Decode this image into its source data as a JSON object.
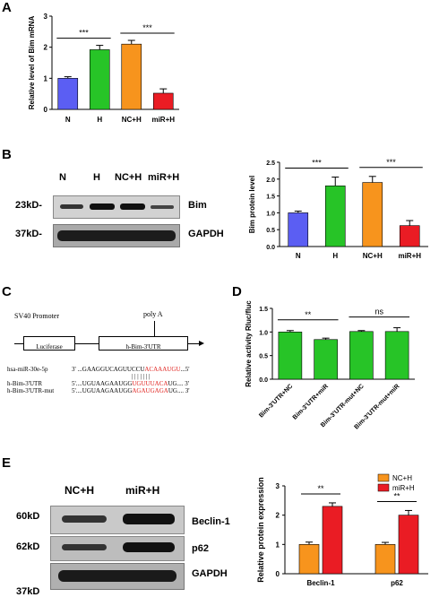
{
  "panels": {
    "A": "A",
    "B": "B",
    "C": "C",
    "D": "D",
    "E": "E"
  },
  "colors": {
    "blue": "#5b5ef3",
    "green": "#27c427",
    "orange": "#f7941d",
    "red": "#ea1c24"
  },
  "blotB": {
    "lanes": [
      "N",
      "H",
      "NC+H",
      "miR+H"
    ],
    "markers": [
      "23kD-",
      "37kD-"
    ],
    "proteins": [
      "Bim",
      "GAPDH"
    ]
  },
  "blotE": {
    "lanes": [
      "NC+H",
      "miR+H"
    ],
    "markers": [
      "60kD",
      "62kD",
      "37kD"
    ],
    "proteins": [
      "Beclin-1",
      "p62",
      "GAPDH"
    ]
  },
  "construct": {
    "promoter": "SV40 Promoter",
    "polyA": "poly A",
    "luc": "Luciferase",
    "utr": "h-Bim-3'UTR",
    "mirna_name": "hsa-miR-30e-5p",
    "mirna_prefix": "3' ...GAAGGUCAGUUCCU",
    "mirna_red": "ACAAAUGU",
    "mirna_suffix": "...5'",
    "pairing": "| | | | | | |",
    "wt_name": "h-Bim-3'UTR",
    "wt_prefix": "5'....UGUAAGAAUGG",
    "wt_red": "UGUUUACA",
    "wt_suffix": "UG.... 3'",
    "mut_name": "h-Bim-3'UTR-mut",
    "mut_prefix": "5'....UGUAAGAAUGG",
    "mut_red": "AGAUGAGA",
    "mut_suffix": "UG.... 3'"
  },
  "chart_data": [
    {
      "id": "A",
      "type": "bar",
      "categories": [
        "N",
        "H",
        "NC+H",
        "miR+H"
      ],
      "values": [
        1.0,
        1.92,
        2.1,
        0.52
      ],
      "errors": [
        0.05,
        0.14,
        0.12,
        0.14
      ],
      "ylabel": "Relative level of Bim mRNA",
      "ylim": [
        0,
        3
      ],
      "yticks": [
        "0",
        "1",
        "2",
        "3"
      ],
      "significance": [
        {
          "pair": [
            0,
            1
          ],
          "label": "***"
        },
        {
          "pair": [
            2,
            3
          ],
          "label": "***"
        }
      ]
    },
    {
      "id": "B",
      "type": "bar",
      "categories": [
        "N",
        "H",
        "NC+H",
        "miR+H"
      ],
      "values": [
        1.0,
        1.8,
        1.9,
        0.62
      ],
      "errors": [
        0.05,
        0.26,
        0.18,
        0.15
      ],
      "ylabel": "Bim protein level",
      "ylim": [
        0,
        2.5
      ],
      "yticks": [
        "0.0",
        "0.5",
        "1.0",
        "1.5",
        "2.0",
        "2.5"
      ],
      "significance": [
        {
          "pair": [
            0,
            1
          ],
          "label": "***"
        },
        {
          "pair": [
            2,
            3
          ],
          "label": "***"
        }
      ]
    },
    {
      "id": "D",
      "type": "bar",
      "categories": [
        "Bim-3'UTR+NC",
        "Bim-3'UTR+miR",
        "Bim-3'UTR-mut+NC",
        "Bim-3'UTR-mut+miR"
      ],
      "values": [
        1.0,
        0.84,
        1.01,
        1.01
      ],
      "errors": [
        0.03,
        0.03,
        0.02,
        0.08
      ],
      "ylabel": "Relative activity Rluc/fluc",
      "ylim": [
        0,
        1.5
      ],
      "yticks": [
        "0.0",
        "0.5",
        "1.0",
        "1.5"
      ],
      "significance": [
        {
          "pair": [
            0,
            1
          ],
          "label": "**"
        },
        {
          "pair": [
            2,
            3
          ],
          "label": "ns"
        }
      ]
    },
    {
      "id": "E",
      "type": "bar",
      "categories": [
        "Beclin-1",
        "p62"
      ],
      "series": [
        {
          "name": "NC+H",
          "values": [
            1.0,
            1.0
          ],
          "errors": [
            0.08,
            0.07
          ]
        },
        {
          "name": "miR+H",
          "values": [
            2.3,
            2.0
          ],
          "errors": [
            0.12,
            0.16
          ]
        }
      ],
      "ylabel": "Relative protein expression",
      "ylim": [
        0,
        3
      ],
      "yticks": [
        "0",
        "1",
        "2",
        "3"
      ],
      "significance": [
        {
          "cat": 0,
          "label": "**"
        },
        {
          "cat": 1,
          "label": "**"
        }
      ],
      "legend": "top-right"
    }
  ]
}
